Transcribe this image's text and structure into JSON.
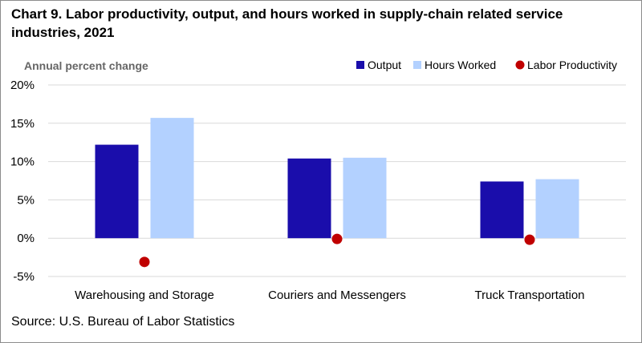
{
  "title": "Chart 9. Labor productivity, output, and hours worked in supply-chain related service industries, 2021",
  "source": "Source: U.S. Bureau of Labor Statistics",
  "chart_data": {
    "type": "bar",
    "title": "Chart 9. Labor productivity, output, and hours worked in supply-chain related service industries, 2021",
    "ylabel": "Annual percent change",
    "xlabel": "",
    "ylim": [
      -5,
      20
    ],
    "yticks": [
      -5,
      0,
      5,
      10,
      15,
      20
    ],
    "ytick_labels": [
      "-5%",
      "0%",
      "5%",
      "10%",
      "15%",
      "20%"
    ],
    "grid": true,
    "legend_position": "top-right",
    "categories": [
      "Warehousing and Storage",
      "Couriers and Messengers",
      "Truck Transportation"
    ],
    "series": [
      {
        "name": "Output",
        "kind": "bar",
        "color": "#1a0dab",
        "values": [
          12.2,
          10.4,
          7.4
        ]
      },
      {
        "name": "Hours Worked",
        "kind": "bar",
        "color": "#b3d1ff",
        "values": [
          15.7,
          10.5,
          7.7
        ]
      },
      {
        "name": "Labor Productivity",
        "kind": "dot",
        "color": "#c00000",
        "values": [
          -3.1,
          -0.1,
          -0.2
        ]
      }
    ]
  }
}
